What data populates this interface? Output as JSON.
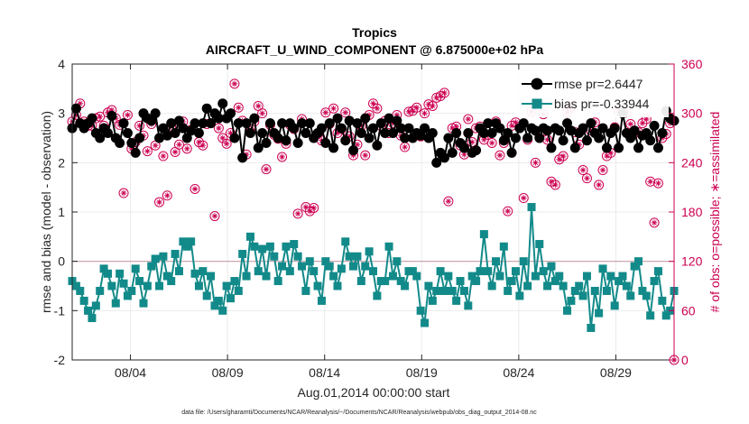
{
  "chart_data": {
    "type": "line",
    "title": "Tropics",
    "subtitle": "AIRCRAFT_U_WIND_COMPONENT @ 6.875000e+02 hPa",
    "xlabel": "Aug.01,2014 00:00:00 start",
    "ylabel": "rmse and bias (model - observation)",
    "y2label": "# of obs: o=possible; ∗=assimilated",
    "footnote": "data file: /Users/gharamti/Documents/NCAR/Reanalysis/~/Documents/NCAR/Reanalysis/webpub/obs_diag_output_2014-08.nc",
    "xlim": [
      1.0,
      32.0
    ],
    "ylim": [
      -2,
      4
    ],
    "y2lim": [
      0,
      360
    ],
    "xticks": [
      4,
      9,
      14,
      19,
      24,
      29
    ],
    "xtick_labels": [
      "08/04",
      "08/09",
      "08/14",
      "08/19",
      "08/24",
      "08/29"
    ],
    "yticks": [
      -2,
      -1,
      0,
      1,
      2,
      3,
      4
    ],
    "ytick_labels": [
      "-2",
      "-1",
      "0",
      "1",
      "2",
      "3",
      "4"
    ],
    "y2ticks": [
      0,
      60,
      120,
      180,
      240,
      300,
      360
    ],
    "y2tick_labels": [
      "0",
      "60",
      "120",
      "180",
      "240",
      "300",
      "360"
    ],
    "legend": [
      "rmse pr=2.6447",
      "bias pr=-0.33944"
    ],
    "colors": {
      "rmse": "#000000",
      "bias": "#138a8a",
      "obs": "#cc0052",
      "zero": "#c9a0a8"
    },
    "series": [
      {
        "name": "rmse pr=2.6447",
        "values": [
          2.7,
          3.1,
          2.8,
          2.7,
          2.8,
          2.9,
          2.6,
          2.5,
          2.7,
          2.6,
          2.95,
          2.5,
          2.4,
          2.8,
          2.6,
          2.4,
          2.2,
          2.5,
          3.0,
          2.9,
          2.85,
          3.0,
          2.5,
          2.7,
          2.55,
          2.8,
          2.6,
          2.85,
          2.7,
          2.5,
          2.65,
          2.8,
          2.6,
          2.8,
          3.1,
          2.8,
          3.0,
          2.9,
          3.2,
          2.9,
          3.0,
          2.5,
          2.8,
          2.1,
          2.8,
          2.6,
          2.9,
          2.3,
          2.6,
          2.4,
          2.8,
          2.6,
          2.5,
          2.8,
          2.45,
          2.8,
          2.7,
          2.4,
          2.8,
          2.6,
          2.8,
          2.5,
          2.6,
          2.7,
          2.4,
          2.8,
          2.3,
          2.9,
          2.7,
          2.45,
          2.85,
          2.25,
          2.8,
          2.6,
          2.9,
          2.5,
          2.7,
          2.35,
          2.8,
          2.6,
          2.9,
          2.6,
          2.85,
          2.7,
          2.5,
          2.7,
          2.5,
          2.6,
          2.55,
          2.7,
          2.5,
          2.6,
          2.0,
          2.2,
          2.1,
          2.5,
          2.2,
          2.6,
          2.4,
          2.3,
          2.6,
          2.2,
          2.25,
          2.7,
          2.6,
          2.8,
          2.6,
          2.8,
          2.7,
          2.45,
          2.6,
          2.2,
          2.5,
          2.7,
          2.8,
          2.5,
          2.7,
          2.65,
          2.5,
          2.7,
          2.65,
          2.3,
          2.7,
          2.65,
          2.45,
          2.8,
          2.65,
          2.3,
          2.6,
          2.7,
          2.45,
          2.8,
          2.6,
          2.5,
          2.7,
          2.3,
          2.6,
          2.7,
          2.3,
          3.0,
          2.6,
          2.5,
          2.65,
          2.3,
          2.55,
          2.6,
          2.45,
          2.75,
          2.3,
          2.6,
          3.05,
          2.9,
          2.85
        ]
      },
      {
        "name": "bias pr=-0.33944",
        "values": [
          -0.4,
          -0.5,
          -0.6,
          -0.8,
          -1.0,
          -1.15,
          -0.9,
          -0.6,
          -0.15,
          -0.25,
          -0.5,
          -0.85,
          -0.25,
          -0.45,
          -0.7,
          -0.6,
          -0.15,
          -0.4,
          -0.85,
          -0.5,
          -0.1,
          0.05,
          -0.5,
          0.1,
          -0.3,
          -0.4,
          0.15,
          -0.2,
          0.4,
          0.3,
          0.4,
          -0.25,
          -0.5,
          -0.2,
          -0.7,
          -0.3,
          -0.9,
          -0.8,
          -1.0,
          -0.5,
          -0.75,
          -0.4,
          -0.6,
          0.15,
          -0.3,
          0.5,
          0.3,
          -0.2,
          0.25,
          -0.3,
          0.3,
          0.1,
          -0.4,
          -0.1,
          0.3,
          -0.2,
          0.35,
          0.1,
          -0.1,
          -0.6,
          0.0,
          -0.2,
          -0.5,
          -0.8,
          0.0,
          -0.1,
          -0.3,
          -0.5,
          -0.15,
          0.4,
          0.1,
          -0.1,
          0.1,
          -0.4,
          -0.1,
          0.2,
          -0.2,
          -0.7,
          -0.4,
          -0.4,
          0.3,
          -0.3,
          0.0,
          -0.4,
          -0.5,
          -0.2,
          -0.2,
          -0.3,
          -1.0,
          -1.25,
          -0.5,
          -0.8,
          -0.6,
          -0.2,
          -0.6,
          -0.3,
          -0.6,
          -0.8,
          -0.4,
          -0.6,
          -0.9,
          -0.3,
          -0.4,
          -0.2,
          0.55,
          -0.2,
          -0.5,
          0.0,
          -0.3,
          0.3,
          -0.6,
          -0.4,
          -0.2,
          -0.7,
          0.0,
          -0.5,
          1.1,
          -0.3,
          0.35,
          -0.2,
          -0.5,
          -0.1,
          -0.4,
          -0.3,
          -0.5,
          -1.0,
          -0.8,
          -0.6,
          -0.5,
          -0.7,
          -0.3,
          -1.35,
          -0.6,
          -1.05,
          -0.15,
          -0.6,
          -0.3,
          -0.9,
          -0.4,
          -0.3,
          -0.5,
          -0.7,
          -0.1,
          0.0,
          -0.6,
          -0.7,
          -1.1,
          -0.4,
          -0.2,
          -0.8,
          -1.1,
          -1.0,
          -0.6
        ]
      },
      {
        "name": "# of obs possible",
        "values": [
          290,
          298,
          312,
          290,
          285,
          285,
          294,
          296,
          285,
          301,
          304,
          294,
          286,
          203,
          298,
          257,
          265,
          285,
          273,
          254,
          287,
          261,
          192,
          248,
          200,
          284,
          253,
          262,
          290,
          257,
          280,
          208,
          265,
          261,
          287,
          288,
          175,
          282,
          270,
          263,
          276,
          336,
          307,
          291,
          250,
          278,
          290,
          309,
          300,
          232,
          286,
          274,
          269,
          247,
          263,
          286,
          281,
          178,
          293,
          186,
          181,
          185,
          275,
          267,
          301,
          287,
          306,
          276,
          281,
          301,
          272,
          249,
          262,
          285,
          249,
          298,
          312,
          306,
          285,
          291,
          276,
          288,
          298,
          273,
          259,
          302,
          303,
          307,
          272,
          300,
          311,
          309,
          319,
          321,
          325,
          193,
          282,
          284,
          261,
          250,
          293,
          265,
          282,
          284,
          268,
          274,
          264,
          290,
          249,
          264,
          181,
          285,
          289,
          284,
          197,
          268,
          302,
          240,
          274,
          299,
          268,
          217,
          213,
          244,
          248,
          301,
          308,
          277,
          262,
          231,
          221,
          279,
          289,
          213,
          231,
          248,
          252,
          283,
          303,
          303,
          301,
          287,
          278,
          277,
          288,
          293,
          217,
          167,
          215,
          270,
          275,
          288,
          0
        ]
      },
      {
        "name": "# of obs assimilated",
        "values": [
          290,
          298,
          312,
          290,
          285,
          285,
          294,
          296,
          285,
          301,
          304,
          294,
          286,
          203,
          298,
          257,
          265,
          285,
          273,
          254,
          287,
          261,
          192,
          248,
          200,
          284,
          253,
          262,
          290,
          257,
          280,
          208,
          265,
          261,
          287,
          288,
          175,
          282,
          270,
          263,
          276,
          336,
          307,
          291,
          250,
          278,
          290,
          309,
          300,
          232,
          286,
          274,
          269,
          247,
          263,
          286,
          281,
          178,
          293,
          186,
          181,
          185,
          275,
          267,
          301,
          287,
          306,
          276,
          281,
          301,
          272,
          249,
          262,
          285,
          249,
          298,
          312,
          306,
          285,
          291,
          276,
          288,
          298,
          273,
          259,
          302,
          303,
          307,
          272,
          300,
          311,
          309,
          319,
          321,
          325,
          193,
          282,
          284,
          261,
          250,
          293,
          265,
          282,
          284,
          268,
          274,
          264,
          290,
          249,
          264,
          181,
          285,
          289,
          284,
          197,
          268,
          302,
          240,
          274,
          299,
          268,
          217,
          213,
          244,
          248,
          301,
          308,
          277,
          262,
          231,
          221,
          279,
          289,
          213,
          231,
          248,
          252,
          283,
          303,
          303,
          301,
          287,
          278,
          277,
          288,
          293,
          217,
          167,
          215,
          270,
          275,
          288,
          0
        ]
      }
    ]
  }
}
